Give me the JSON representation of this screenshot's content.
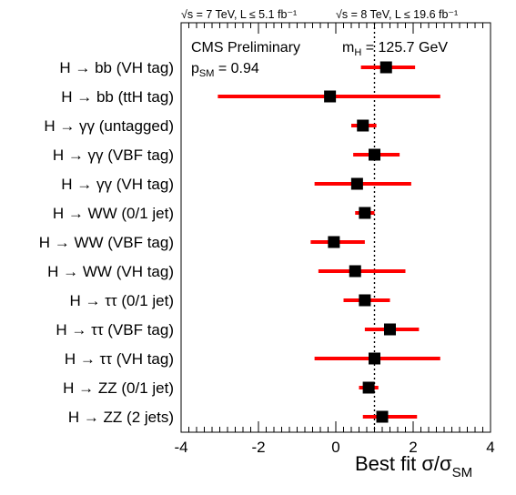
{
  "chart_data": {
    "type": "scatter",
    "header_left": "√s = 7 TeV, L ≤ 5.1 fb⁻¹",
    "header_right": "√s = 8 TeV, L ≤ 19.6 fb⁻¹",
    "annotation_label": "CMS Preliminary",
    "annotation_mass": "m_H = 125.7 GeV",
    "annotation_psm": "p_SM = 0.94",
    "xlabel": "Best fit σ/σ_SM",
    "xlim": [
      -4,
      4
    ],
    "xticks": [
      "-4",
      "-2",
      "0",
      "2",
      "4"
    ],
    "sm_reference": 1,
    "marker_color": "#000000",
    "errorbar_color": "#ff0000",
    "categories": [
      "H → bb (VH tag)",
      "H → bb (ttH tag)",
      "H → γγ (untagged)",
      "H → γγ (VBF tag)",
      "H → γγ (VH tag)",
      "H → WW (0/1 jet)",
      "H → WW (VBF tag)",
      "H → WW (VH tag)",
      "H → ττ (0/1 jet)",
      "H → ττ (VBF tag)",
      "H → ττ (VH tag)",
      "H → ZZ (0/1 jet)",
      "H → ZZ (2 jets)"
    ],
    "series": [
      {
        "values": [
          1.3,
          -0.15,
          0.7,
          1.0,
          0.55,
          0.75,
          -0.05,
          0.5,
          0.75,
          1.4,
          1.0,
          0.85,
          1.2
        ],
        "err_low": [
          0.65,
          -3.05,
          0.4,
          0.45,
          -0.55,
          0.5,
          -0.65,
          -0.45,
          0.2,
          0.75,
          -0.55,
          0.6,
          0.7
        ],
        "err_high": [
          2.05,
          2.7,
          1.05,
          1.65,
          1.95,
          1.0,
          0.75,
          1.8,
          1.4,
          2.15,
          2.7,
          1.1,
          2.1
        ]
      }
    ]
  }
}
